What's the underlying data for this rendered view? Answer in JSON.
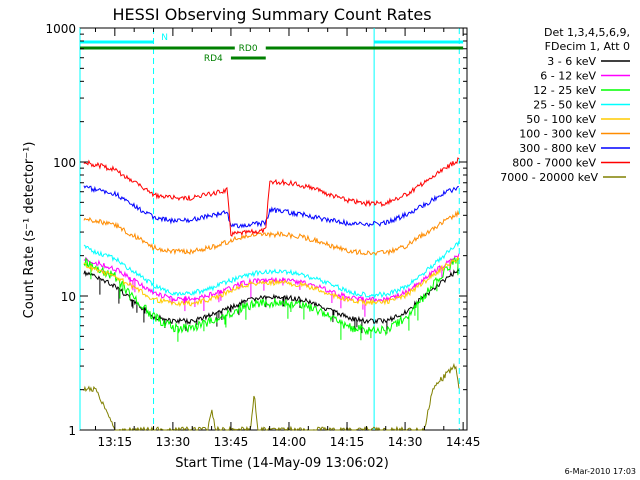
{
  "chart_data": {
    "type": "line",
    "title": "HESSI Observing Summary Count Rates",
    "xlabel": "Start Time (14-May-09 13:06:02)",
    "ylabel": "Count Rate (s⁻¹ detector⁻¹)",
    "xlim": [
      "13:06",
      "14:46"
    ],
    "ylim": [
      1,
      1000
    ],
    "yscale": "log",
    "xticks": [
      "13:15",
      "13:30",
      "13:45",
      "14:00",
      "14:15",
      "14:30",
      "14:45"
    ],
    "yticks": [
      "1",
      "10",
      "100",
      "1000"
    ],
    "legend_header": [
      "Det 1,3,4,5,6,9,",
      "FDecim 1, Att 0"
    ],
    "legend_position": "right",
    "footer": "6-Mar-2010 17:03",
    "series": [
      {
        "name": "3 - 6 keV",
        "color": "#000000",
        "points": [
          [
            "13:07",
            15
          ],
          [
            "13:15",
            12
          ],
          [
            "13:20",
            9
          ],
          [
            "13:25",
            7
          ],
          [
            "13:30",
            6.5
          ],
          [
            "13:35",
            6.5
          ],
          [
            "13:40",
            7.2
          ],
          [
            "13:45",
            8.2
          ],
          [
            "13:48",
            9
          ],
          [
            "13:52",
            9.6
          ],
          [
            "13:58",
            9.8
          ],
          [
            "14:03",
            9.5
          ],
          [
            "14:08",
            8.5
          ],
          [
            "14:12",
            7.5
          ],
          [
            "14:16",
            6.8
          ],
          [
            "14:20",
            6.5
          ],
          [
            "14:25",
            6.5
          ],
          [
            "14:30",
            7.5
          ],
          [
            "14:35",
            10
          ],
          [
            "14:40",
            13
          ],
          [
            "14:44",
            16
          ]
        ]
      },
      {
        "name": "6 - 12 keV",
        "color": "#ff00ff",
        "points": [
          [
            "13:07",
            19
          ],
          [
            "13:15",
            16
          ],
          [
            "13:20",
            13
          ],
          [
            "13:25",
            10.5
          ],
          [
            "13:30",
            9.5
          ],
          [
            "13:35",
            9.5
          ],
          [
            "13:40",
            10.3
          ],
          [
            "13:45",
            11.5
          ],
          [
            "13:48",
            12.5
          ],
          [
            "13:52",
            13
          ],
          [
            "13:58",
            13.2
          ],
          [
            "14:03",
            12.7
          ],
          [
            "14:08",
            11.6
          ],
          [
            "14:12",
            10.5
          ],
          [
            "14:16",
            9.7
          ],
          [
            "14:20",
            9.4
          ],
          [
            "14:25",
            9.4
          ],
          [
            "14:30",
            10.5
          ],
          [
            "14:35",
            13.5
          ],
          [
            "14:40",
            17
          ],
          [
            "14:44",
            20
          ]
        ]
      },
      {
        "name": "12 - 25 keV",
        "color": "#00ff00",
        "points": [
          [
            "13:07",
            18
          ],
          [
            "13:15",
            14
          ],
          [
            "13:20",
            9.5
          ],
          [
            "13:25",
            7
          ],
          [
            "13:30",
            5.8
          ],
          [
            "13:35",
            5.8
          ],
          [
            "13:40",
            6.5
          ],
          [
            "13:45",
            7.5
          ],
          [
            "13:48",
            8.3
          ],
          [
            "13:52",
            8.8
          ],
          [
            "13:58",
            9
          ],
          [
            "14:03",
            8.7
          ],
          [
            "14:08",
            7.6
          ],
          [
            "14:12",
            6.5
          ],
          [
            "14:16",
            5.8
          ],
          [
            "14:20",
            5.5
          ],
          [
            "14:25",
            5.5
          ],
          [
            "14:30",
            6.8
          ],
          [
            "14:35",
            10
          ],
          [
            "14:40",
            15
          ],
          [
            "14:44",
            20
          ]
        ]
      },
      {
        "name": "25 - 50 keV",
        "color": "#00ffff",
        "points": [
          [
            "13:07",
            23
          ],
          [
            "13:15",
            19
          ],
          [
            "13:20",
            15
          ],
          [
            "13:25",
            12
          ],
          [
            "13:30",
            10.5
          ],
          [
            "13:35",
            10.5
          ],
          [
            "13:40",
            11.5
          ],
          [
            "13:45",
            13
          ],
          [
            "13:48",
            14
          ],
          [
            "13:52",
            15
          ],
          [
            "13:58",
            15.2
          ],
          [
            "14:03",
            14.6
          ],
          [
            "14:08",
            13.2
          ],
          [
            "14:12",
            11.8
          ],
          [
            "14:16",
            10.6
          ],
          [
            "14:20",
            10.2
          ],
          [
            "14:25",
            10.3
          ],
          [
            "14:30",
            11.5
          ],
          [
            "14:35",
            15
          ],
          [
            "14:40",
            20
          ],
          [
            "14:44",
            25
          ]
        ]
      },
      {
        "name": "50 - 100 keV",
        "color": "#ffcc00",
        "points": [
          [
            "13:07",
            17
          ],
          [
            "13:15",
            14
          ],
          [
            "13:20",
            11.5
          ],
          [
            "13:25",
            9.5
          ],
          [
            "13:30",
            8.8
          ],
          [
            "13:35",
            8.8
          ],
          [
            "13:40",
            9.5
          ],
          [
            "13:45",
            11
          ],
          [
            "13:48",
            12
          ],
          [
            "13:52",
            12.5
          ],
          [
            "13:58",
            12.6
          ],
          [
            "14:03",
            12.2
          ],
          [
            "14:08",
            11
          ],
          [
            "14:12",
            10
          ],
          [
            "14:16",
            9.2
          ],
          [
            "14:20",
            8.9
          ],
          [
            "14:25",
            9
          ],
          [
            "14:30",
            10
          ],
          [
            "14:35",
            12.8
          ],
          [
            "14:40",
            16.5
          ],
          [
            "14:44",
            19
          ]
        ]
      },
      {
        "name": "100 - 300 keV",
        "color": "#ff8c00",
        "points": [
          [
            "13:07",
            38
          ],
          [
            "13:15",
            34
          ],
          [
            "13:20",
            28
          ],
          [
            "13:25",
            23
          ],
          [
            "13:30",
            21.5
          ],
          [
            "13:35",
            21.5
          ],
          [
            "13:40",
            23
          ],
          [
            "13:45",
            26
          ],
          [
            "13:48",
            27.5
          ],
          [
            "13:52",
            28.5
          ],
          [
            "13:58",
            28.8
          ],
          [
            "14:03",
            27.8
          ],
          [
            "14:08",
            25.5
          ],
          [
            "14:12",
            23
          ],
          [
            "14:16",
            21.5
          ],
          [
            "14:20",
            21
          ],
          [
            "14:25",
            21
          ],
          [
            "14:30",
            23.5
          ],
          [
            "14:35",
            29
          ],
          [
            "14:40",
            36
          ],
          [
            "14:44",
            42
          ]
        ]
      },
      {
        "name": "300 - 800 keV",
        "color": "#0000ff",
        "points": [
          [
            "13:07",
            65
          ],
          [
            "13:15",
            58
          ],
          [
            "13:20",
            47
          ],
          [
            "13:25",
            39
          ],
          [
            "13:30",
            36.5
          ],
          [
            "13:35",
            37
          ],
          [
            "13:40",
            40
          ],
          [
            "13:44",
            42
          ],
          [
            "13:45",
            33
          ],
          [
            "13:50",
            34
          ],
          [
            "13:54",
            35
          ],
          [
            "13:55",
            44
          ],
          [
            "14:00",
            42
          ],
          [
            "14:05",
            40
          ],
          [
            "14:10",
            37
          ],
          [
            "14:15",
            35
          ],
          [
            "14:20",
            34.5
          ],
          [
            "14:25",
            35
          ],
          [
            "14:30",
            40
          ],
          [
            "14:35",
            48
          ],
          [
            "14:40",
            58
          ],
          [
            "14:44",
            65
          ]
        ]
      },
      {
        "name": "800 - 7000 keV",
        "color": "#ff0000",
        "points": [
          [
            "13:07",
            100
          ],
          [
            "13:15",
            88
          ],
          [
            "13:20",
            70
          ],
          [
            "13:25",
            57
          ],
          [
            "13:30",
            54
          ],
          [
            "13:35",
            54
          ],
          [
            "13:40",
            58
          ],
          [
            "13:44",
            62
          ],
          [
            "13:45",
            29
          ],
          [
            "13:50",
            30
          ],
          [
            "13:54",
            31
          ],
          [
            "13:55",
            72
          ],
          [
            "14:00",
            70
          ],
          [
            "14:05",
            65
          ],
          [
            "14:10",
            58
          ],
          [
            "14:15",
            52
          ],
          [
            "14:20",
            49
          ],
          [
            "14:25",
            49
          ],
          [
            "14:30",
            57
          ],
          [
            "14:35",
            70
          ],
          [
            "14:40",
            88
          ],
          [
            "14:44",
            105
          ]
        ]
      },
      {
        "name": "7000 - 20000 keV",
        "color": "#808000",
        "points": [
          [
            "13:07",
            2
          ],
          [
            "13:10",
            2
          ],
          [
            "13:15",
            1
          ],
          [
            "13:39",
            1
          ],
          [
            "13:40",
            1.4
          ],
          [
            "13:41",
            1
          ],
          [
            "13:50",
            1
          ],
          [
            "13:51",
            1.9
          ],
          [
            "13:52",
            1
          ],
          [
            "14:35",
            1
          ],
          [
            "14:37",
            2
          ],
          [
            "14:40",
            2.5
          ],
          [
            "14:43",
            3
          ],
          [
            "14:44",
            2
          ]
        ]
      }
    ],
    "states": {
      "N": {
        "color": "#00ffff",
        "intervals": [
          [
            "13:06",
            "13:25"
          ],
          [
            "14:22",
            "14:45"
          ]
        ]
      },
      "RD0": {
        "color": "#008000",
        "intervals": [
          [
            "13:06",
            "13:46"
          ],
          [
            "13:54",
            "14:45"
          ]
        ]
      },
      "RD4": {
        "color": "#008000",
        "intervals": [
          [
            "13:45",
            "13:54"
          ]
        ]
      }
    },
    "boundaries_solid": [
      "13:06",
      "14:22"
    ],
    "boundaries_dashed": [
      "13:25",
      "14:44"
    ]
  }
}
